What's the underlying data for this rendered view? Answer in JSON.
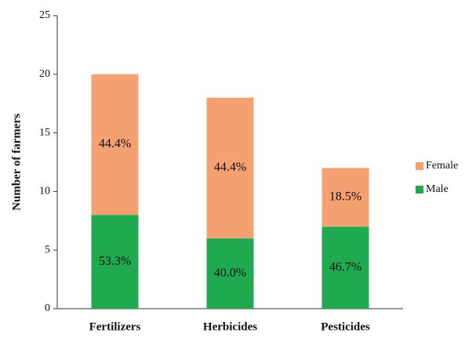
{
  "chart_data": {
    "type": "stacked_bar",
    "y_label": "Number of farmers",
    "categories": [
      "Fertilizers",
      "Herbicides",
      "Pesticides"
    ],
    "series": [
      {
        "name": "Male",
        "color": "#1faa50",
        "values": [
          8,
          6,
          7
        ],
        "annotations": [
          "53.3%",
          "40.0%",
          "46.7%"
        ]
      },
      {
        "name": "Female",
        "color": "#f4a070",
        "values": [
          12,
          12,
          5
        ],
        "annotations": [
          "44.4%",
          "44.4%",
          "18.5%"
        ]
      }
    ],
    "ylim": [
      0,
      25
    ],
    "yticks": [
      0,
      5,
      10,
      15,
      20,
      25
    ],
    "legend": "right"
  }
}
